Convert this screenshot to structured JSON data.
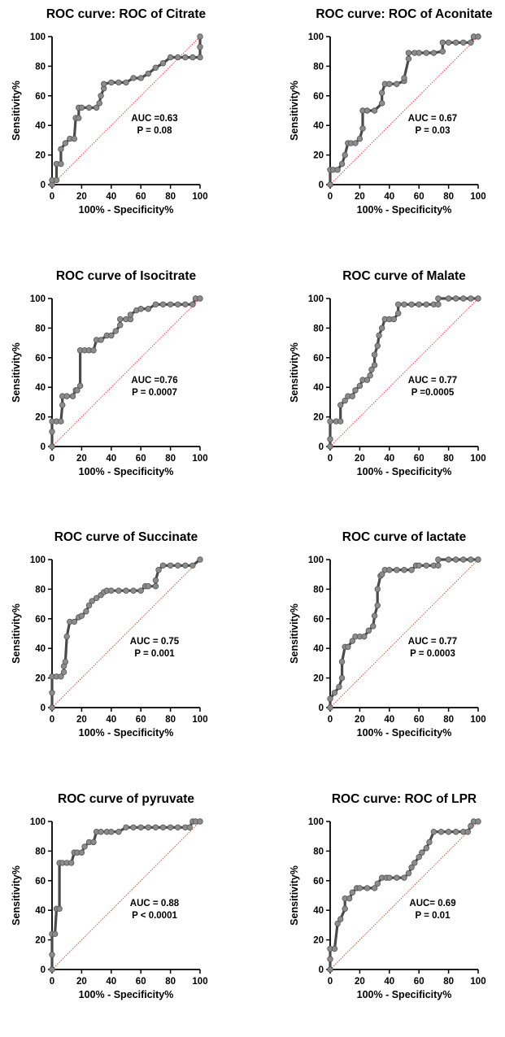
{
  "chart_data": [
    {
      "type": "line",
      "title": "ROC curve: ROC of Citrate",
      "xlabel": "100% - Specificity%",
      "ylabel": "Sensitivity%",
      "xlim": [
        0,
        100
      ],
      "ylim": [
        0,
        100
      ],
      "xticks": [
        "0",
        "20",
        "40",
        "60",
        "80",
        "100"
      ],
      "yticks": [
        "0",
        "20",
        "40",
        "60",
        "80",
        "100"
      ],
      "auc_text": "AUC =0.63",
      "p_text": "P = 0.08",
      "series": [
        {
          "x": [
            0,
            0,
            3,
            3,
            6,
            6,
            9,
            12,
            15,
            16,
            18,
            18,
            20,
            25,
            30,
            32,
            33,
            35,
            35,
            40,
            45,
            50,
            55,
            60,
            65,
            70,
            75,
            80,
            85,
            90,
            95,
            100,
            100,
            100
          ],
          "y": [
            0,
            3,
            3,
            14,
            14,
            24,
            28,
            31,
            31,
            45,
            45,
            52,
            52,
            52,
            52,
            55,
            60,
            65,
            68,
            69,
            69,
            69,
            72,
            72,
            75,
            79,
            82,
            86,
            86,
            86,
            86,
            86,
            93,
            100
          ]
        }
      ],
      "reference_line": {
        "x": [
          0,
          100
        ],
        "y": [
          0,
          100
        ]
      }
    },
    {
      "type": "line",
      "title": "ROC curve: ROC of Aconitate",
      "xlabel": "100% - Specificity%",
      "ylabel": "Sensitivity%",
      "xlim": [
        0,
        100
      ],
      "ylim": [
        0,
        100
      ],
      "xticks": [
        "0",
        "20",
        "40",
        "60",
        "80",
        "100"
      ],
      "yticks": [
        "0",
        "20",
        "40",
        "60",
        "80",
        "100"
      ],
      "auc_text": "AUC = 0.67",
      "p_text": "P = 0.03",
      "series": [
        {
          "x": [
            0,
            0,
            2,
            5,
            8,
            10,
            12,
            14,
            17,
            20,
            22,
            22,
            25,
            30,
            35,
            35,
            37,
            40,
            45,
            50,
            50,
            53,
            53,
            57,
            60,
            65,
            70,
            76,
            76,
            80,
            85,
            90,
            95,
            97,
            100
          ],
          "y": [
            0,
            10,
            10,
            10,
            14,
            20,
            28,
            28,
            28,
            31,
            38,
            50,
            50,
            50,
            55,
            62,
            68,
            68,
            68,
            70,
            72,
            85,
            89,
            89,
            89,
            89,
            89,
            90,
            96,
            96,
            96,
            96,
            96,
            100,
            100
          ]
        }
      ],
      "reference_line": {
        "x": [
          0,
          100
        ],
        "y": [
          0,
          100
        ]
      }
    },
    {
      "type": "line",
      "title": "ROC curve of Isocitrate",
      "xlabel": "100% - Specificity%",
      "ylabel": "Sensitivity%",
      "xlim": [
        0,
        100
      ],
      "ylim": [
        0,
        100
      ],
      "xticks": [
        "0",
        "20",
        "40",
        "60",
        "80",
        "100"
      ],
      "yticks": [
        "0",
        "20",
        "40",
        "60",
        "80",
        "100"
      ],
      "auc_text": "AUC =0.76",
      "p_text": "P = 0.0007",
      "series": [
        {
          "x": [
            0,
            0,
            0,
            3,
            6,
            7,
            7,
            10,
            14,
            16,
            17,
            19,
            19,
            22,
            25,
            28,
            30,
            33,
            37,
            40,
            43,
            46,
            46,
            50,
            53,
            53,
            57,
            60,
            65,
            70,
            75,
            80,
            85,
            90,
            95,
            97,
            100
          ],
          "y": [
            0,
            10,
            17,
            17,
            17,
            28,
            34,
            34,
            34,
            38,
            38,
            41,
            65,
            65,
            65,
            65,
            72,
            72,
            75,
            75,
            78,
            82,
            86,
            86,
            86,
            89,
            92,
            93,
            93,
            96,
            96,
            96,
            96,
            96,
            96,
            100,
            100
          ]
        }
      ],
      "reference_line": {
        "x": [
          0,
          100
        ],
        "y": [
          0,
          100
        ]
      }
    },
    {
      "type": "line",
      "title": "ROC curve of Malate",
      "xlabel": "100% - Specificity%",
      "ylabel": "Sensitivity%",
      "xlim": [
        0,
        100
      ],
      "ylim": [
        0,
        100
      ],
      "xticks": [
        "0",
        "20",
        "40",
        "60",
        "80",
        "100"
      ],
      "yticks": [
        "0",
        "20",
        "40",
        "60",
        "80",
        "100"
      ],
      "auc_text": "AUC = 0.77",
      "p_text": "P =0.0005",
      "series": [
        {
          "x": [
            0,
            0,
            0,
            4,
            7,
            7,
            10,
            12,
            15,
            17,
            20,
            22,
            25,
            27,
            28,
            30,
            30,
            32,
            33,
            35,
            37,
            40,
            43,
            46,
            46,
            50,
            55,
            60,
            65,
            70,
            73,
            73,
            80,
            85,
            90,
            95,
            100
          ],
          "y": [
            0,
            5,
            17,
            17,
            17,
            28,
            31,
            34,
            34,
            38,
            41,
            45,
            45,
            48,
            52,
            55,
            62,
            68,
            75,
            80,
            86,
            86,
            86,
            90,
            96,
            96,
            96,
            96,
            96,
            96,
            96,
            100,
            100,
            100,
            100,
            100,
            100
          ]
        }
      ],
      "reference_line": {
        "x": [
          0,
          100
        ],
        "y": [
          0,
          100
        ]
      }
    },
    {
      "type": "line",
      "title": "ROC curve of Succinate",
      "xlabel": "100% - Specificity%",
      "ylabel": "Sensitivity%",
      "xlim": [
        0,
        100
      ],
      "ylim": [
        0,
        100
      ],
      "xticks": [
        "0",
        "20",
        "40",
        "60",
        "80",
        "100"
      ],
      "yticks": [
        "0",
        "20",
        "40",
        "60",
        "80",
        "100"
      ],
      "auc_text": "AUC = 0.75",
      "p_text": "P = 0.001",
      "series": [
        {
          "x": [
            0,
            0,
            0,
            3,
            6,
            8,
            8,
            9,
            10,
            12,
            15,
            18,
            20,
            23,
            25,
            27,
            30,
            33,
            35,
            37,
            40,
            45,
            50,
            55,
            60,
            63,
            65,
            70,
            70,
            72,
            75,
            80,
            85,
            90,
            95,
            100
          ],
          "y": [
            0,
            10,
            21,
            21,
            21,
            24,
            28,
            31,
            48,
            58,
            58,
            61,
            62,
            65,
            69,
            72,
            74,
            76,
            78,
            79,
            79,
            79,
            79,
            79,
            79,
            82,
            82,
            82,
            86,
            93,
            96,
            96,
            96,
            96,
            96,
            100
          ]
        }
      ],
      "reference_line": {
        "x": [
          0,
          100
        ],
        "y": [
          0,
          100
        ]
      }
    },
    {
      "type": "line",
      "title": "ROC curve of lactate",
      "xlabel": "100% - Specificity%",
      "ylabel": "Sensitivity%",
      "xlim": [
        0,
        100
      ],
      "ylim": [
        0,
        100
      ],
      "xticks": [
        "0",
        "20",
        "40",
        "60",
        "80",
        "100"
      ],
      "yticks": [
        "0",
        "20",
        "40",
        "60",
        "80",
        "100"
      ],
      "auc_text": "AUC = 0.77",
      "p_text": "P = 0.0003",
      "series": [
        {
          "x": [
            0,
            0,
            3,
            6,
            8,
            8,
            10,
            12,
            15,
            17,
            20,
            23,
            26,
            29,
            30,
            32,
            32,
            34,
            35,
            37,
            40,
            45,
            50,
            55,
            58,
            60,
            65,
            70,
            73,
            73,
            80,
            85,
            90,
            95,
            100
          ],
          "y": [
            0,
            6,
            10,
            14,
            20,
            31,
            41,
            41,
            45,
            48,
            48,
            48,
            52,
            55,
            62,
            69,
            80,
            89,
            90,
            93,
            93,
            93,
            93,
            93,
            96,
            96,
            96,
            96,
            96,
            100,
            100,
            100,
            100,
            100,
            100
          ]
        }
      ],
      "reference_line": {
        "x": [
          0,
          100
        ],
        "y": [
          0,
          100
        ]
      }
    },
    {
      "type": "line",
      "title": "ROC curve of pyruvate",
      "xlabel": "100% - Specificity%",
      "ylabel": "Sensitivity%",
      "xlim": [
        0,
        100
      ],
      "ylim": [
        0,
        100
      ],
      "xticks": [
        "0",
        "20",
        "40",
        "60",
        "80",
        "100"
      ],
      "yticks": [
        "0",
        "20",
        "40",
        "60",
        "80",
        "100"
      ],
      "auc_text": "AUC = 0.88",
      "p_text": "P < 0.0001",
      "series": [
        {
          "x": [
            0,
            0,
            0,
            2,
            3,
            5,
            5,
            7,
            10,
            13,
            15,
            17,
            20,
            22,
            25,
            28,
            30,
            33,
            37,
            40,
            45,
            50,
            55,
            60,
            65,
            70,
            75,
            80,
            85,
            90,
            93,
            95,
            97,
            100
          ],
          "y": [
            0,
            10,
            24,
            24,
            41,
            41,
            72,
            72,
            72,
            72,
            79,
            79,
            79,
            83,
            86,
            86,
            93,
            93,
            93,
            93,
            93,
            96,
            96,
            96,
            96,
            96,
            96,
            96,
            96,
            96,
            96,
            100,
            100,
            100
          ]
        }
      ],
      "reference_line": {
        "x": [
          0,
          100
        ],
        "y": [
          0,
          100
        ]
      }
    },
    {
      "type": "line",
      "title": "ROC curve: ROC of LPR",
      "xlabel": "100% - Specificity%",
      "ylabel": "Sensitivity%",
      "xlim": [
        0,
        100
      ],
      "ylim": [
        0,
        100
      ],
      "xticks": [
        "0",
        "20",
        "40",
        "60",
        "80",
        "100"
      ],
      "yticks": [
        "0",
        "20",
        "40",
        "60",
        "80",
        "100"
      ],
      "auc_text": "AUC= 0.69",
      "p_text": "P = 0.01",
      "series": [
        {
          "x": [
            0,
            0,
            0,
            3,
            5,
            7,
            10,
            10,
            13,
            15,
            18,
            20,
            25,
            30,
            32,
            35,
            38,
            40,
            45,
            50,
            53,
            55,
            57,
            60,
            62,
            65,
            67,
            70,
            75,
            80,
            85,
            90,
            93,
            95,
            97,
            100
          ],
          "y": [
            0,
            7,
            14,
            14,
            31,
            34,
            41,
            48,
            48,
            52,
            55,
            55,
            55,
            55,
            58,
            62,
            62,
            62,
            62,
            62,
            65,
            69,
            72,
            76,
            79,
            82,
            86,
            93,
            93,
            93,
            93,
            93,
            93,
            97,
            100,
            100
          ]
        }
      ],
      "reference_line": {
        "x": [
          0,
          100
        ],
        "y": [
          0,
          100
        ]
      }
    }
  ]
}
